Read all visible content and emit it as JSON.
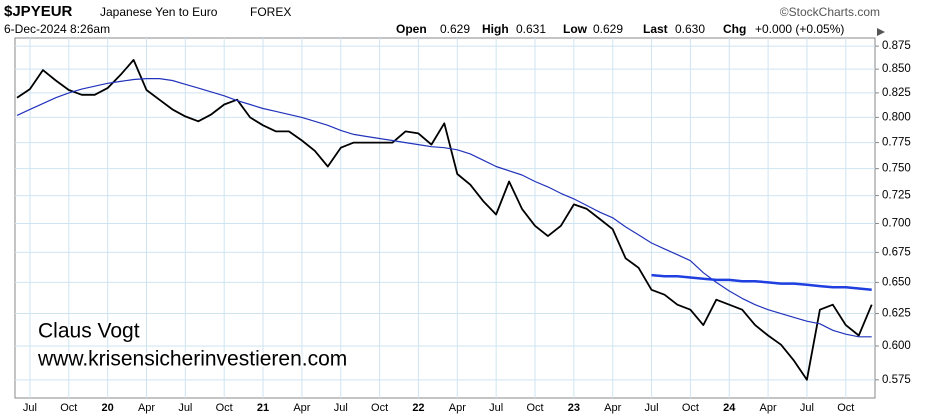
{
  "chart_data": {
    "type": "line",
    "title": "$JPYEUR",
    "subtitle": "Japanese Yen to Euro",
    "exchange": "FOREX",
    "source": "©StockCharts.com",
    "date": "6-Dec-2024 8:26am",
    "quote": [
      {
        "label": "Open",
        "value": "0.629"
      },
      {
        "label": "High",
        "value": "0.631"
      },
      {
        "label": "Low",
        "value": "0.629"
      },
      {
        "label": "Last",
        "value": "0.630"
      },
      {
        "label": "Chg",
        "value": "+0.000 (+0.05%)"
      }
    ],
    "annotations": [
      "Claus Vogt",
      "www.krisensicherinvestieren.com"
    ],
    "categories": [
      null,
      "Jul",
      null,
      null,
      "Oct",
      null,
      null,
      "20",
      null,
      null,
      "Apr",
      null,
      null,
      "Jul",
      null,
      null,
      "Oct",
      null,
      null,
      "21",
      null,
      null,
      "Apr",
      null,
      null,
      "Jul",
      null,
      null,
      "Oct",
      null,
      null,
      "22",
      null,
      null,
      "Apr",
      null,
      null,
      "Jul",
      null,
      null,
      "Oct",
      null,
      null,
      "23",
      null,
      null,
      "Apr",
      null,
      null,
      "Jul",
      null,
      null,
      "Oct",
      null,
      null,
      "24",
      null,
      null,
      "Apr",
      null,
      null,
      "Jul",
      null,
      null,
      "Oct",
      null,
      null
    ],
    "series": [
      {
        "color": "#000000",
        "values": [
          0.82,
          0.829,
          0.849,
          0.838,
          0.828,
          0.823,
          0.823,
          0.83,
          0.844,
          0.86,
          0.828,
          0.818,
          0.808,
          0.801,
          0.796,
          0.803,
          0.813,
          0.818,
          0.8,
          0.792,
          0.786,
          0.786,
          0.777,
          0.767,
          0.752,
          0.77,
          0.775,
          0.775,
          0.775,
          0.775,
          0.786,
          0.784,
          0.773,
          0.794,
          0.745,
          0.735,
          0.72,
          0.708,
          0.738,
          0.713,
          0.698,
          0.689,
          0.698,
          0.717,
          0.713,
          0.704,
          0.695,
          0.67,
          0.662,
          0.644,
          0.64,
          0.632,
          0.628,
          0.616,
          0.636,
          0.632,
          0.628,
          0.616,
          0.608,
          0.601,
          0.589,
          0.575,
          0.628,
          0.632,
          0.616,
          0.608,
          0.632
        ]
      },
      {
        "color": "#2233bb",
        "values": [
          0.802,
          0.808,
          0.814,
          0.82,
          0.825,
          0.829,
          0.832,
          0.835,
          0.837,
          0.839,
          0.84,
          0.84,
          0.838,
          0.834,
          0.83,
          0.826,
          0.822,
          0.817,
          0.813,
          0.809,
          0.806,
          0.803,
          0.8,
          0.796,
          0.792,
          0.787,
          0.783,
          0.781,
          0.779,
          0.777,
          0.775,
          0.773,
          0.771,
          0.77,
          0.768,
          0.764,
          0.758,
          0.752,
          0.748,
          0.744,
          0.738,
          0.733,
          0.727,
          0.722,
          0.716,
          0.71,
          0.705,
          0.697,
          0.69,
          0.683,
          0.678,
          0.673,
          0.668,
          0.658,
          0.65,
          0.643,
          0.637,
          0.632,
          0.628,
          0.625,
          0.622,
          0.619,
          0.617,
          0.612,
          0.609,
          0.607,
          0.607
        ]
      },
      {
        "color": "#1f3fe0",
        "values": [
          null,
          null,
          null,
          null,
          null,
          null,
          null,
          null,
          null,
          null,
          null,
          null,
          null,
          null,
          null,
          null,
          null,
          null,
          null,
          null,
          null,
          null,
          null,
          null,
          null,
          null,
          null,
          null,
          null,
          null,
          null,
          null,
          null,
          null,
          null,
          null,
          null,
          null,
          null,
          null,
          null,
          null,
          null,
          null,
          null,
          null,
          null,
          null,
          null,
          0.656,
          0.655,
          0.655,
          0.654,
          0.653,
          0.652,
          0.652,
          0.651,
          0.651,
          0.65,
          0.649,
          0.649,
          0.648,
          0.647,
          0.646,
          0.646,
          0.645,
          0.644
        ]
      }
    ],
    "ylog": true,
    "ylim": [
      0.562,
      0.884
    ],
    "yticks": [
      0.575,
      {
        "value": 0.6,
        "label": "0.600"
      },
      0.625,
      {
        "value": 0.65,
        "label": "0.650"
      },
      0.675,
      {
        "value": 0.7,
        "label": "0.700"
      },
      0.725,
      {
        "value": 0.75,
        "label": "0.750"
      },
      0.775,
      {
        "value": 0.8,
        "label": "0.800"
      },
      0.825,
      {
        "value": 0.85,
        "label": "0.850"
      },
      0.875
    ],
    "grid": true
  }
}
